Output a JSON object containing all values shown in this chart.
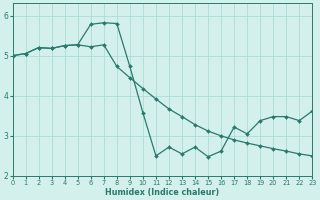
{
  "line_diagonal_x": [
    0,
    1,
    2,
    3,
    4,
    5,
    6,
    7,
    8,
    9,
    10,
    11,
    12,
    13,
    14,
    15,
    16,
    17,
    18,
    19,
    20,
    21,
    22,
    23
  ],
  "line_diagonal_y": [
    5.0,
    5.05,
    5.2,
    5.18,
    5.25,
    5.27,
    5.22,
    5.27,
    4.73,
    4.45,
    4.18,
    3.92,
    3.67,
    3.48,
    3.28,
    3.12,
    3.0,
    2.9,
    2.82,
    2.75,
    2.68,
    2.62,
    2.55,
    2.5
  ],
  "line_zigzag_x": [
    0,
    1,
    2,
    3,
    4,
    5,
    6,
    7,
    8,
    9,
    10,
    11,
    12,
    13,
    14,
    15,
    16,
    17,
    18,
    19,
    20,
    21,
    22,
    23
  ],
  "line_zigzag_y": [
    5.0,
    5.05,
    5.2,
    5.18,
    5.25,
    5.27,
    5.78,
    5.82,
    5.8,
    4.73,
    3.58,
    2.5,
    2.72,
    2.55,
    2.72,
    2.48,
    2.62,
    3.22,
    3.05,
    3.38,
    3.48,
    3.48,
    3.38,
    3.62
  ],
  "line_color": "#297a6e",
  "bg_color": "#d4f0ec",
  "grid_color": "#aaddd6",
  "xlabel": "Humidex (Indice chaleur)",
  "ylim": [
    2.0,
    6.3
  ],
  "xlim": [
    0,
    23
  ],
  "yticks": [
    2,
    3,
    4,
    5,
    6
  ],
  "xticks": [
    0,
    1,
    2,
    3,
    4,
    5,
    6,
    7,
    8,
    9,
    10,
    11,
    12,
    13,
    14,
    15,
    16,
    17,
    18,
    19,
    20,
    21,
    22,
    23
  ]
}
